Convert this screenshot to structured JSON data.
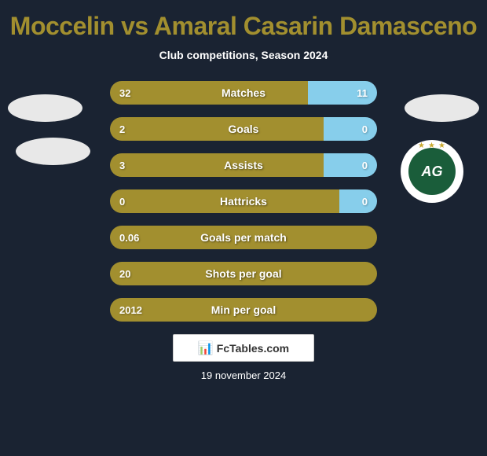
{
  "title": "Moccelin vs Amaral Casarin Damasceno",
  "subtitle": "Club competitions, Season 2024",
  "date": "19 november 2024",
  "branding": {
    "badge_text": "FcTables.com",
    "icon": "📊"
  },
  "colors": {
    "background": "#1a2332",
    "title_color": "#a28f2f",
    "left_bar": "#a28f2f",
    "right_bar": "#87ceeb",
    "text": "#ffffff",
    "badge_bg": "#e8e8e8",
    "logo_bg": "#1a5d3a"
  },
  "team_logo": {
    "text": "AG"
  },
  "stats": [
    {
      "label": "Matches",
      "left_value": "32",
      "right_value": "11",
      "left_pct": 74,
      "right_pct": 26
    },
    {
      "label": "Goals",
      "left_value": "2",
      "right_value": "0",
      "left_pct": 80,
      "right_pct": 20
    },
    {
      "label": "Assists",
      "left_value": "3",
      "right_value": "0",
      "left_pct": 80,
      "right_pct": 20
    },
    {
      "label": "Hattricks",
      "left_value": "0",
      "right_value": "0",
      "left_pct": 86,
      "right_pct": 14
    },
    {
      "label": "Goals per match",
      "left_value": "0.06",
      "right_value": "",
      "left_pct": 100,
      "right_pct": 0
    },
    {
      "label": "Shots per goal",
      "left_value": "20",
      "right_value": "",
      "left_pct": 100,
      "right_pct": 0
    },
    {
      "label": "Min per goal",
      "left_value": "2012",
      "right_value": "",
      "left_pct": 100,
      "right_pct": 0
    }
  ]
}
